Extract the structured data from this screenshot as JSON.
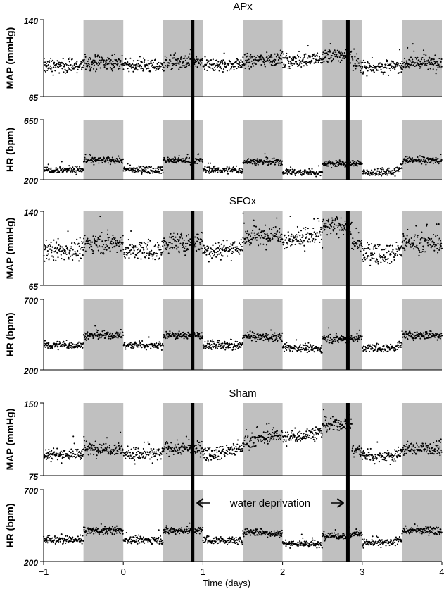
{
  "chart_data": {
    "type": "scatter",
    "x_axis": {
      "label": "Time (days)",
      "range": [
        -1,
        4
      ],
      "ticks": [
        "−1",
        "0",
        "1",
        "2",
        "3",
        "4"
      ],
      "tick_values": [
        -1,
        0,
        1,
        2,
        3,
        4
      ]
    },
    "shaded_intervals_days": [
      [
        -0.5,
        0
      ],
      [
        0.5,
        1
      ],
      [
        1.5,
        2
      ],
      [
        2.5,
        3
      ],
      [
        3.5,
        4
      ]
    ],
    "event_lines_days": [
      0.87,
      2.82
    ],
    "annotation": {
      "text": "water deprivation",
      "from_day": 0.87,
      "to_day": 2.82
    },
    "groups": [
      {
        "title": "APx",
        "panels": [
          {
            "ylabel": "MAP (mmHg)",
            "ylim": [
              65,
              140
            ],
            "yticks": [
              "140",
              "65"
            ],
            "series_summary": {
              "baseline": 95,
              "dark_phase_level": 98,
              "spread": 5,
              "deprivation_peak": 105
            }
          },
          {
            "ylabel": "HR (bpm)",
            "ylim": [
              200,
              650
            ],
            "yticks": [
              "650",
              "200"
            ],
            "series_summary": {
              "baseline": 275,
              "dark_phase_level": 345,
              "spread": 18,
              "deprivation_peak": 320
            }
          }
        ]
      },
      {
        "title": "SFOx",
        "panels": [
          {
            "ylabel": "MAP (mmHg)",
            "ylim": [
              65,
              140
            ],
            "yticks": [
              "140",
              "65"
            ],
            "series_summary": {
              "baseline": 100,
              "dark_phase_level": 108,
              "spread": 7,
              "deprivation_peak": 125
            }
          },
          {
            "ylabel": "HR (bpm)",
            "ylim": [
              200,
              700
            ],
            "yticks": [
              "700",
              "200"
            ],
            "series_summary": {
              "baseline": 375,
              "dark_phase_level": 445,
              "spread": 20,
              "deprivation_peak": 420
            }
          }
        ]
      },
      {
        "title": "Sham",
        "panels": [
          {
            "ylabel": "MAP (mmHg)",
            "ylim": [
              75,
              150
            ],
            "yticks": [
              "150",
              "75"
            ],
            "series_summary": {
              "baseline": 97,
              "dark_phase_level": 103,
              "spread": 5,
              "deprivation_peak": 128
            }
          },
          {
            "ylabel": "HR (bpm)",
            "ylim": [
              200,
              700
            ],
            "yticks": [
              "700",
              "200"
            ],
            "series_summary": {
              "baseline": 350,
              "dark_phase_level": 415,
              "spread": 18,
              "deprivation_peak": 380
            }
          }
        ]
      }
    ]
  },
  "colors": {
    "dark_phase_shading": "#c0c0c0",
    "points": "#000000",
    "event_line": "#000000",
    "axis": "#000000"
  }
}
